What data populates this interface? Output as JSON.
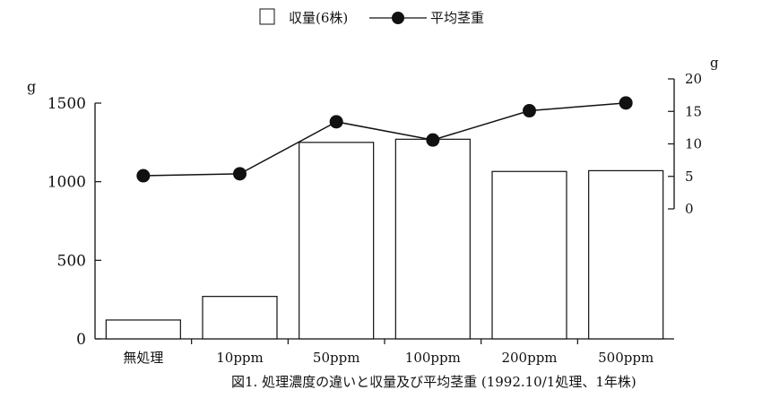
{
  "chart_data": {
    "type": "bar",
    "categories": [
      "無処理",
      "10ppm",
      "50ppm",
      "100ppm",
      "200ppm",
      "500ppm"
    ],
    "series": [
      {
        "name": "収量(6株)",
        "type": "bar",
        "axis": "left",
        "values": [
          120,
          270,
          1250,
          1270,
          1065,
          1070
        ]
      },
      {
        "name": "平均茎重",
        "type": "line",
        "axis": "right",
        "values": [
          5.1,
          5.4,
          13.4,
          10.6,
          15.1,
          16.3
        ]
      }
    ],
    "left_axis": {
      "unit": "g",
      "ylim": [
        0,
        1500
      ],
      "ticks": [
        0,
        500,
        1000,
        1500
      ]
    },
    "right_axis": {
      "unit": "g",
      "ylim": [
        0,
        20
      ],
      "ticks": [
        0,
        5,
        10,
        15,
        20
      ]
    },
    "legend": {
      "placement": "top-center"
    },
    "grid": false,
    "caption": "図1.  処理濃度の違いと収量及び平均茎重 (1992.10/1処理、1年株)",
    "colors": {
      "bar_fill": "#ffffff",
      "stroke": "#111111",
      "marker": "#111111"
    }
  }
}
